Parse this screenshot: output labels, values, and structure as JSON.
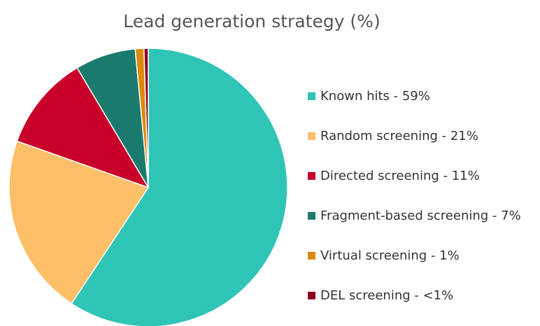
{
  "chart_data": {
    "type": "pie",
    "title": "Lead generation strategy (%)",
    "categories": [
      "Known hits - 59%",
      "Random screening - 21%",
      "Directed screening - 11%",
      "Fragment-based screening - 7%",
      "Virtual screening - 1%",
      "DEL screening - <1%"
    ],
    "values": [
      59,
      21,
      11,
      7,
      1,
      0.5
    ],
    "colors": [
      "#2ec4b6",
      "#fdbf68",
      "#c9002a",
      "#1b7a6e",
      "#dc8a0c",
      "#8b0020"
    ],
    "legend": "right"
  }
}
